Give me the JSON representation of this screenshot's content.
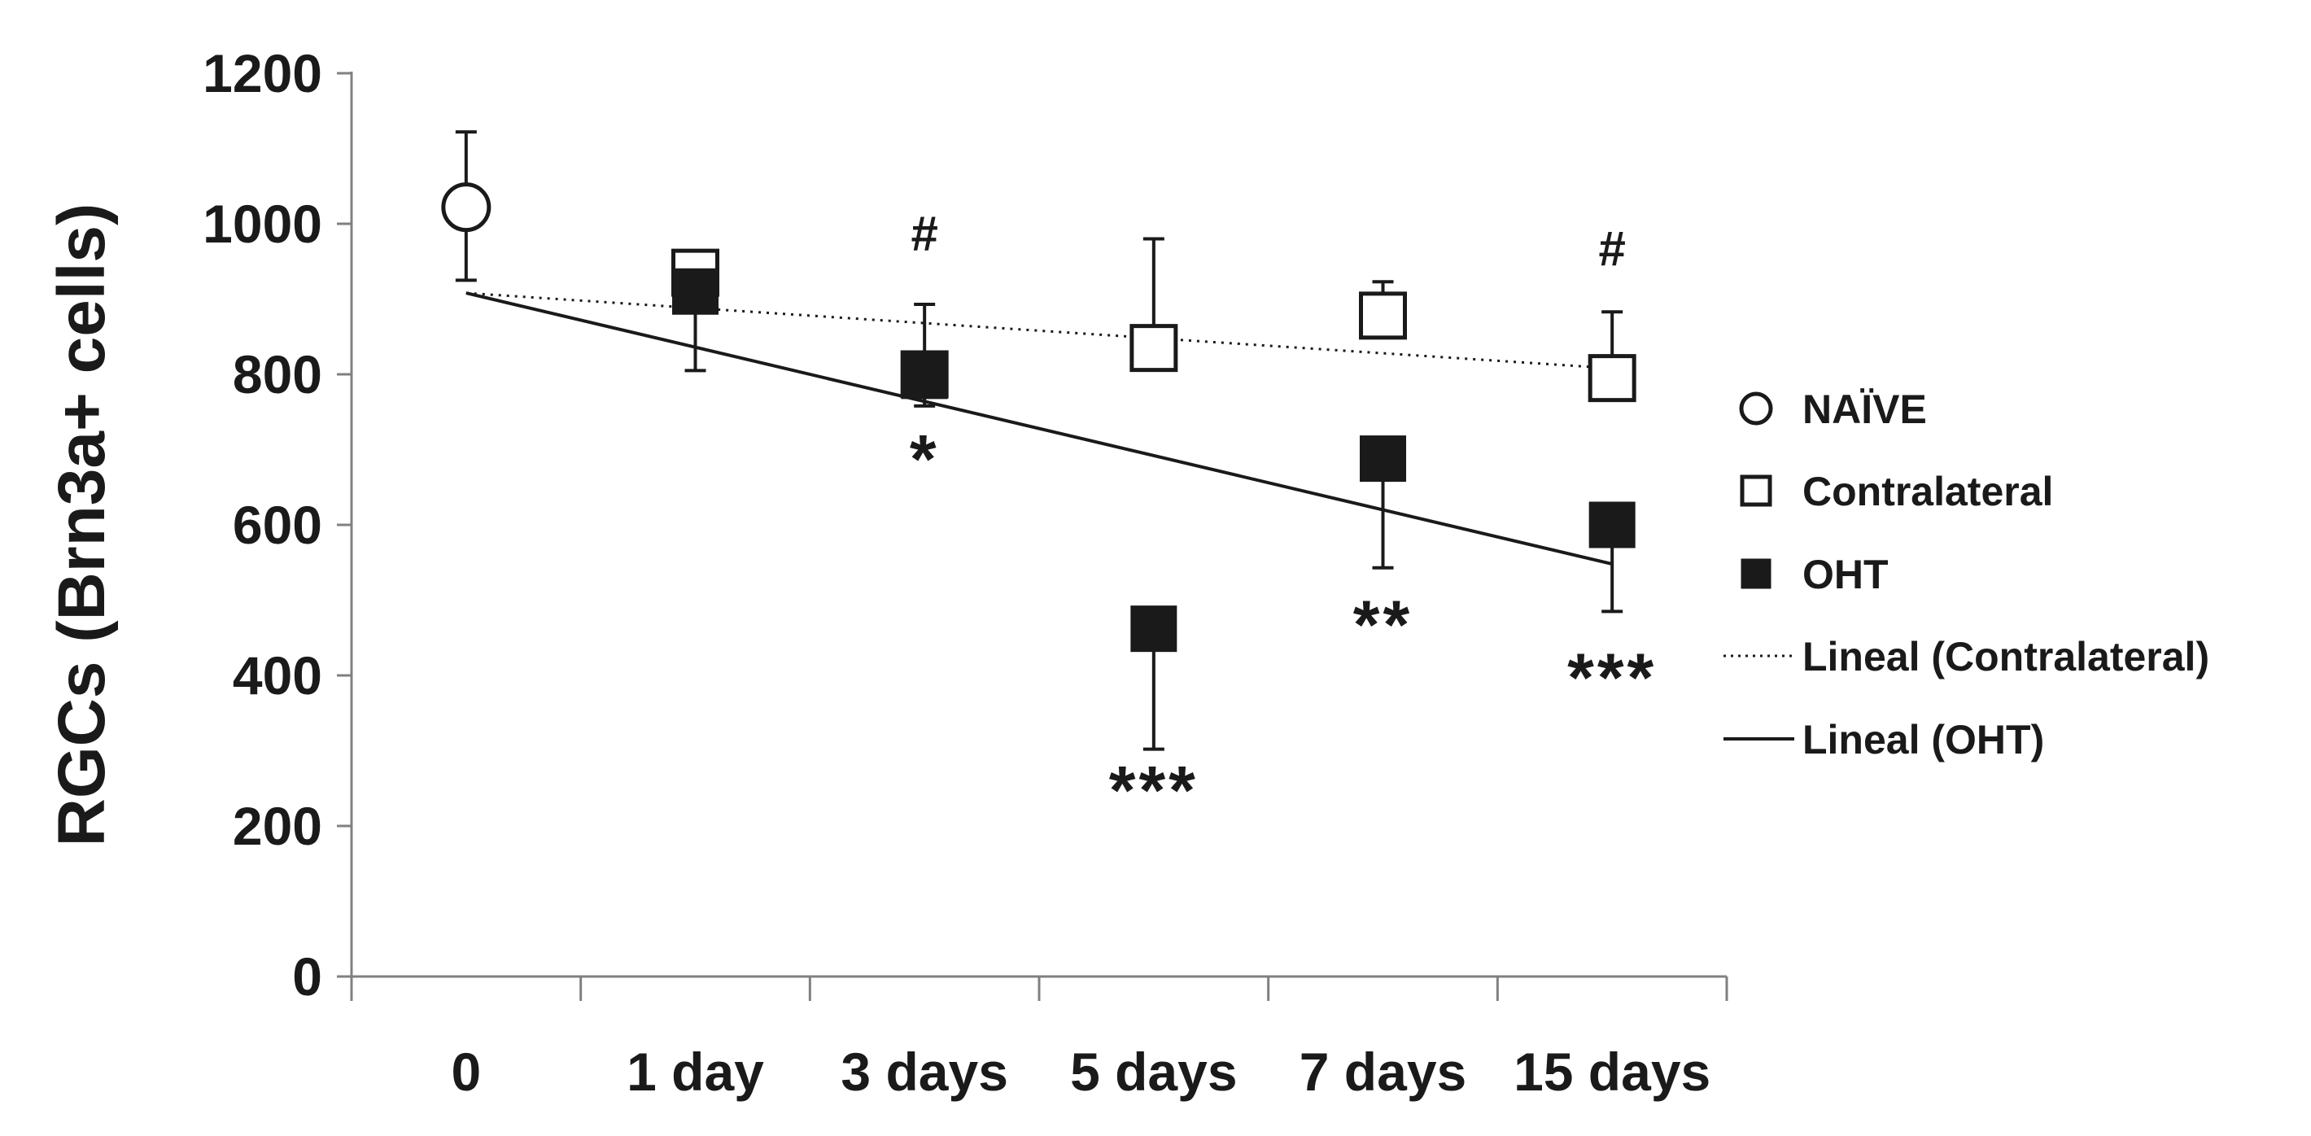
{
  "chart_data": {
    "type": "scatter",
    "title": "",
    "xlabel": "",
    "ylabel": "RGCs (Brn3a+ cells)",
    "ylim": [
      0,
      1200
    ],
    "yticks": [
      0,
      200,
      400,
      600,
      800,
      1000,
      1200
    ],
    "categories": [
      "0",
      "1 day",
      "3 days",
      "5 days",
      "7 days",
      "15 days"
    ],
    "grid": false,
    "legend_position": "right",
    "series": [
      {
        "name": "NAÏVE",
        "marker": "open-circle",
        "color": "#1a1a1a",
        "points": [
          {
            "category": "0",
            "value": 1022,
            "error_plus": 100,
            "error_minus": 97
          }
        ]
      },
      {
        "name": "Contralateral",
        "marker": "open-square",
        "color": "#1a1a1a",
        "points": [
          {
            "category": "1 day",
            "value": 935,
            "error_plus": 0,
            "error_minus": 0
          },
          {
            "category": "3 days",
            "value": 800,
            "error_plus": 0,
            "error_minus": 0
          },
          {
            "category": "5 days",
            "value": 835,
            "error_plus": 145,
            "error_minus": 0
          },
          {
            "category": "7 days",
            "value": 878,
            "error_plus": 45,
            "error_minus": 0
          },
          {
            "category": "15 days",
            "value": 795,
            "error_plus": 88,
            "error_minus": 0
          }
        ]
      },
      {
        "name": "OHT",
        "marker": "filled-square",
        "color": "#1a1a1a",
        "points": [
          {
            "category": "1 day",
            "value": 910,
            "error_plus": 0,
            "error_minus": 105
          },
          {
            "category": "3 days",
            "value": 798,
            "error_plus": 95,
            "error_minus": 40
          },
          {
            "category": "5 days",
            "value": 462,
            "error_plus": 0,
            "error_minus": 160
          },
          {
            "category": "7 days",
            "value": 688,
            "error_plus": 0,
            "error_minus": 145
          },
          {
            "category": "15 days",
            "value": 600,
            "error_plus": 0,
            "error_minus": 115
          }
        ]
      }
    ],
    "trendlines": [
      {
        "name": "Lineal (Contralateral)",
        "style": "dotted",
        "from": {
          "category": "0",
          "value": 908
        },
        "to": {
          "category": "15 days",
          "value": 808
        }
      },
      {
        "name": "Lineal (OHT)",
        "style": "solid",
        "from": {
          "category": "0",
          "value": 908
        },
        "to": {
          "category": "15 days",
          "value": 548
        }
      }
    ],
    "annotations": [
      {
        "text": "#",
        "category": "3 days",
        "value": 965
      },
      {
        "text": "*",
        "category": "3 days",
        "value": 695
      },
      {
        "text": "***",
        "category": "5 days",
        "value": 255
      },
      {
        "text": "**",
        "category": "7 days",
        "value": 475
      },
      {
        "text": "#",
        "category": "15 days",
        "value": 945
      },
      {
        "text": "***",
        "category": "15 days",
        "value": 405
      }
    ]
  }
}
